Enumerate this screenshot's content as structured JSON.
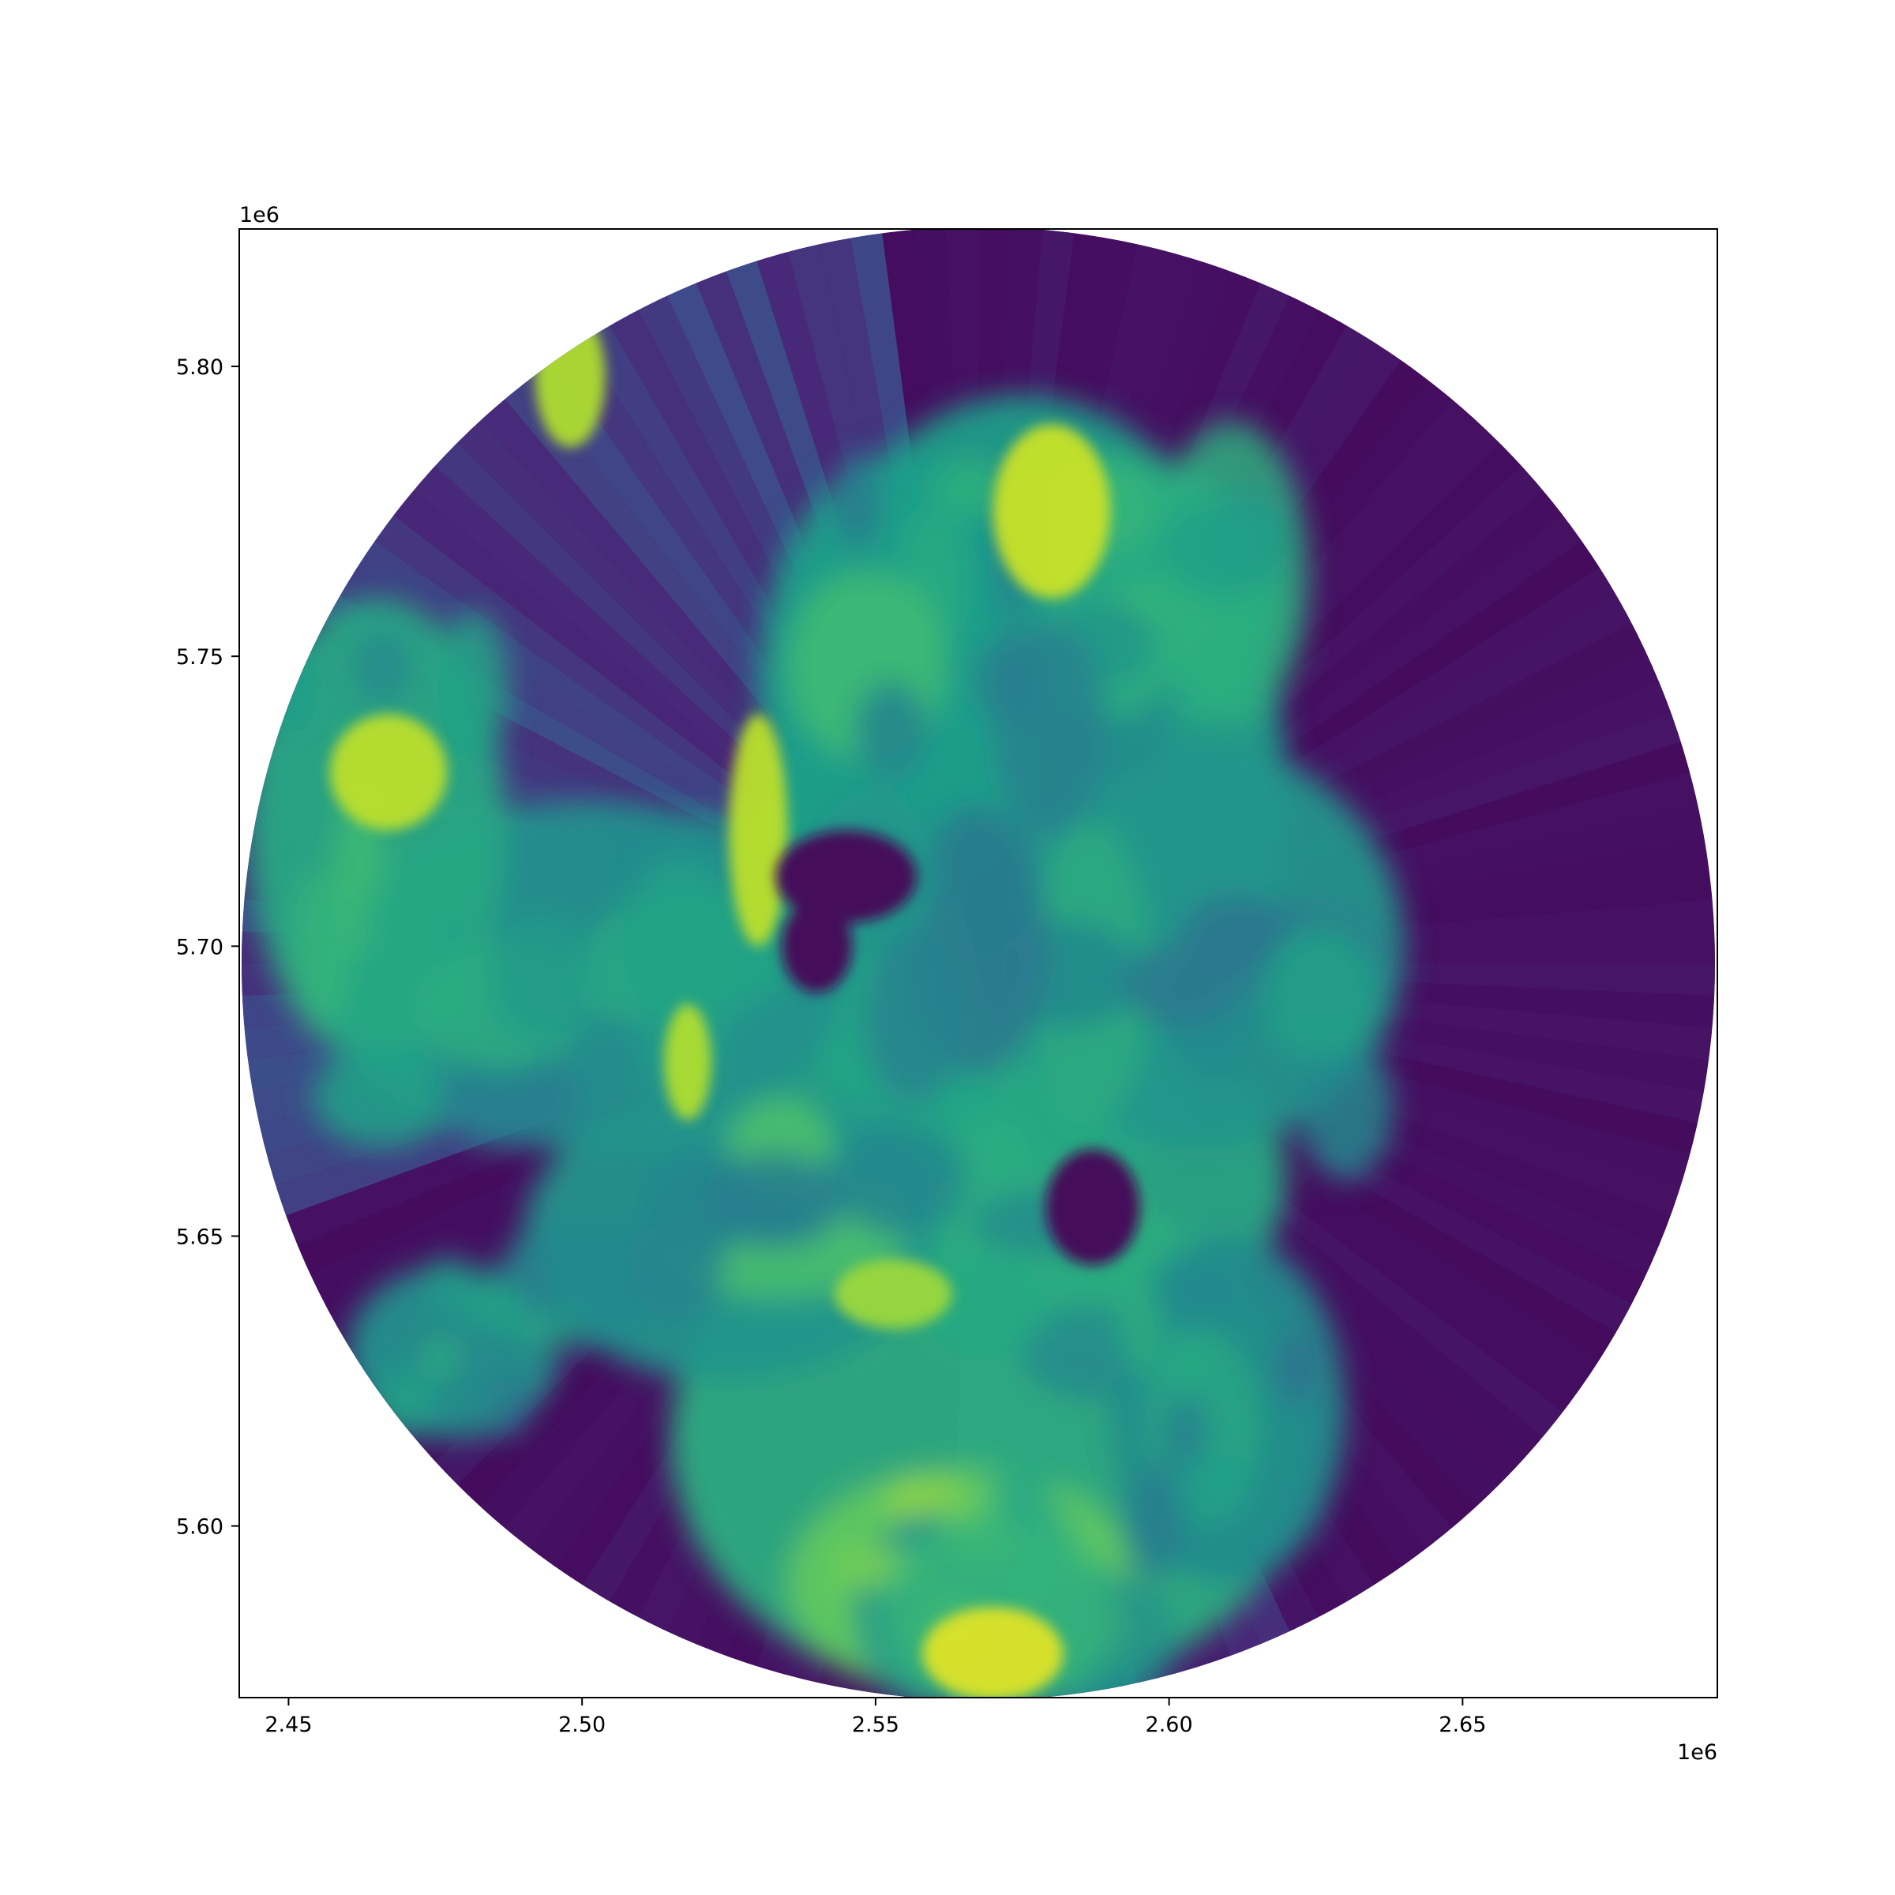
{
  "chart_data": {
    "type": "heatmap",
    "description_colormap": "viridis",
    "x_offset_label": "1e6",
    "y_offset_label": "1e6",
    "xlim": [
      2.4416,
      2.6934
    ],
    "ylim": [
      5.5704,
      5.8237
    ],
    "xticks": [
      2.45,
      2.5,
      2.55,
      2.6,
      2.65
    ],
    "xtick_labels": [
      "2.45",
      "2.50",
      "2.55",
      "2.60",
      "2.65"
    ],
    "yticks": [
      5.6,
      5.65,
      5.7,
      5.75,
      5.8
    ],
    "ytick_labels": [
      "5.60",
      "5.65",
      "5.70",
      "5.75",
      "5.80"
    ],
    "radar_center": [
      2.5675,
      5.697
    ],
    "radar_radius": 0.1255,
    "colors": {
      "low": "#440154",
      "mid_low": "#3b528b",
      "mid": "#21918c",
      "mid_high": "#5ec962",
      "high": "#fde725"
    },
    "precip_cells": [
      {
        "x": 2.575,
        "y": 5.725,
        "rx": 0.045,
        "ry": 0.07,
        "value": 0.55
      },
      {
        "x": 2.58,
        "y": 5.66,
        "rx": 0.04,
        "ry": 0.03,
        "value": 0.6
      },
      {
        "x": 2.54,
        "y": 5.68,
        "rx": 0.03,
        "ry": 0.045,
        "value": 0.58
      },
      {
        "x": 2.57,
        "y": 5.615,
        "rx": 0.055,
        "ry": 0.045,
        "value": 0.62
      },
      {
        "x": 2.5,
        "y": 5.695,
        "rx": 0.045,
        "ry": 0.03,
        "value": 0.5
      },
      {
        "x": 2.465,
        "y": 5.72,
        "rx": 0.022,
        "ry": 0.04,
        "value": 0.6
      },
      {
        "x": 2.525,
        "y": 5.65,
        "rx": 0.035,
        "ry": 0.025,
        "value": 0.52
      },
      {
        "x": 2.605,
        "y": 5.7,
        "rx": 0.035,
        "ry": 0.035,
        "value": 0.52
      },
      {
        "x": 2.59,
        "y": 5.76,
        "rx": 0.03,
        "ry": 0.025,
        "value": 0.6
      },
      {
        "x": 2.565,
        "y": 5.59,
        "rx": 0.03,
        "ry": 0.02,
        "value": 0.75
      },
      {
        "x": 2.478,
        "y": 5.63,
        "rx": 0.018,
        "ry": 0.015,
        "value": 0.5
      },
      {
        "x": 2.61,
        "y": 5.62,
        "rx": 0.02,
        "ry": 0.03,
        "value": 0.48
      },
      {
        "x": 2.555,
        "y": 5.745,
        "rx": 0.025,
        "ry": 0.04,
        "value": 0.55
      }
    ],
    "high_cells": [
      {
        "x": 2.58,
        "y": 5.775,
        "rx": 0.01,
        "ry": 0.015,
        "value": 0.92
      },
      {
        "x": 2.467,
        "y": 5.73,
        "rx": 0.01,
        "ry": 0.01,
        "value": 0.9
      },
      {
        "x": 2.53,
        "y": 5.72,
        "rx": 0.005,
        "ry": 0.02,
        "value": 0.9
      },
      {
        "x": 2.518,
        "y": 5.68,
        "rx": 0.004,
        "ry": 0.01,
        "value": 0.88
      },
      {
        "x": 2.553,
        "y": 5.64,
        "rx": 0.01,
        "ry": 0.006,
        "value": 0.85
      },
      {
        "x": 2.57,
        "y": 5.578,
        "rx": 0.012,
        "ry": 0.008,
        "value": 0.95
      },
      {
        "x": 2.498,
        "y": 5.798,
        "rx": 0.006,
        "ry": 0.012,
        "value": 0.88
      }
    ],
    "dry_patches": [
      {
        "x": 2.545,
        "y": 5.712,
        "rx": 0.012,
        "ry": 0.008
      },
      {
        "x": 2.587,
        "y": 5.655,
        "rx": 0.008,
        "ry": 0.01
      },
      {
        "x": 2.54,
        "y": 5.7,
        "rx": 0.006,
        "ry": 0.008
      }
    ]
  }
}
